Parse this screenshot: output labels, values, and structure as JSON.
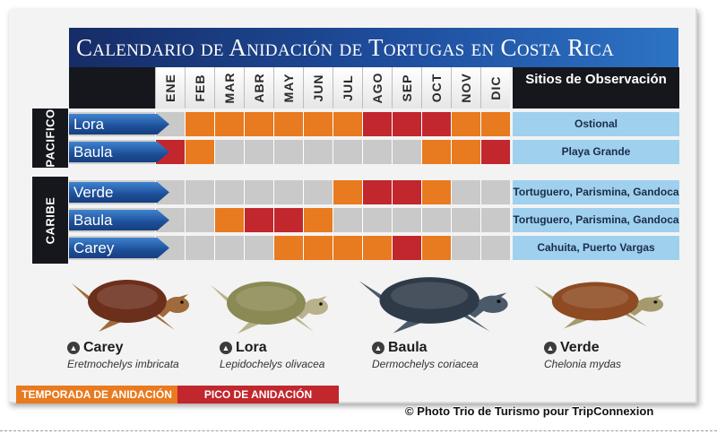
{
  "title": "Calendario de Anidación de Tortugas en Costa Rica",
  "sites_header": "Sitios de Observación",
  "months": [
    "ENE",
    "FEB",
    "MAR",
    "ABR",
    "MAY",
    "JUN",
    "JUL",
    "AGO",
    "SEP",
    "OCT",
    "NOV",
    "DIC"
  ],
  "colors": {
    "temporada": "#e87a1f",
    "pico": "#c1272d",
    "none": "#c9c9c9",
    "site_bg": "#9fd0ee",
    "title_bg": "#1f4f9f"
  },
  "regions": [
    {
      "name": "PACIFICO",
      "rows": [
        {
          "species": "Lora",
          "site": "Ostional",
          "months": [
            "n",
            "t",
            "t",
            "t",
            "t",
            "t",
            "t",
            "p",
            "p",
            "p",
            "t",
            "t"
          ]
        },
        {
          "species": "Baula",
          "site": "Playa Grande",
          "months": [
            "p",
            "t",
            "n",
            "n",
            "n",
            "n",
            "n",
            "n",
            "n",
            "t",
            "t",
            "p"
          ]
        }
      ]
    },
    {
      "name": "CARIBE",
      "rows": [
        {
          "species": "Verde",
          "site": "Tortuguero, Parismina, Gandoca",
          "months": [
            "n",
            "n",
            "n",
            "n",
            "n",
            "n",
            "t",
            "p",
            "p",
            "t",
            "n",
            "n"
          ]
        },
        {
          "species": "Baula",
          "site": "Tortuguero, Parismina, Gandoca",
          "months": [
            "n",
            "n",
            "t",
            "p",
            "p",
            "t",
            "n",
            "n",
            "n",
            "n",
            "n",
            "n"
          ]
        },
        {
          "species": "Carey",
          "site": "Cahuita, Puerto Vargas",
          "months": [
            "n",
            "n",
            "n",
            "n",
            "t",
            "t",
            "t",
            "t",
            "p",
            "t",
            "n",
            "n"
          ]
        }
      ]
    }
  ],
  "turtles": [
    {
      "name": "Carey",
      "scientific": "Eretmochelys imbricata",
      "shell": "#6b2f1c",
      "skin": "#a06a3c"
    },
    {
      "name": "Lora",
      "scientific": "Lepidochelys olivacea",
      "shell": "#8a8a55",
      "skin": "#b9b18a"
    },
    {
      "name": "Baula",
      "scientific": "Dermochelys coriacea",
      "shell": "#2f3a48",
      "skin": "#4a5a6a"
    },
    {
      "name": "Verde",
      "scientific": "Chelonia mydas",
      "shell": "#8e4a22",
      "skin": "#a59a6e"
    }
  ],
  "legend": {
    "temporada": "TEMPORADA DE ANIDACIÓN",
    "pico": "PICO DE ANIDACIÓN"
  },
  "credit": "© Photo Trio de Turismo pour TripConnexion"
}
